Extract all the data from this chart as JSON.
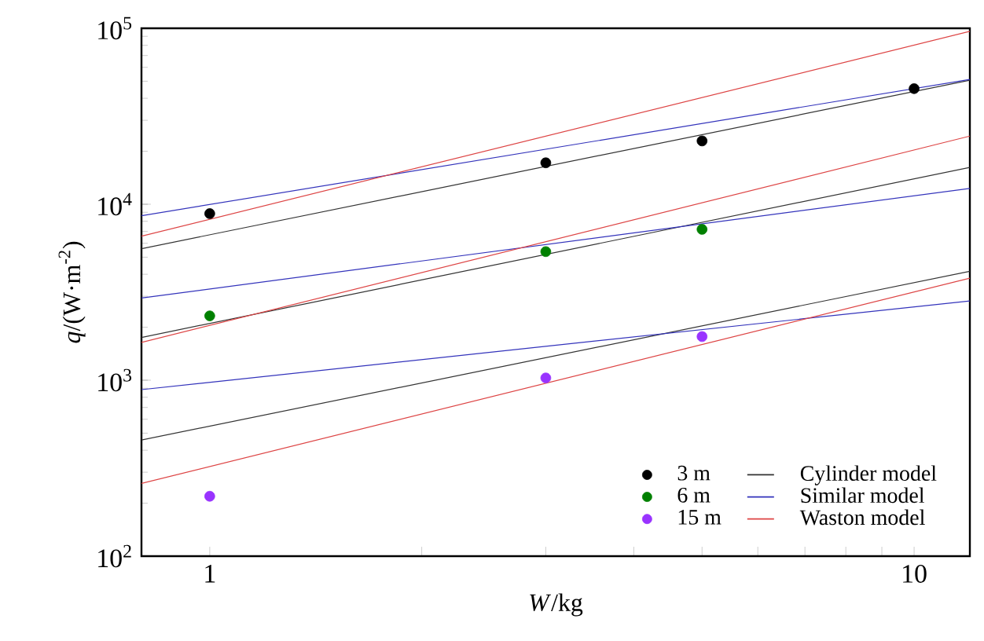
{
  "chart_data": {
    "type": "scatter",
    "xlabel": "*W*/kg",
    "ylabel": "*q*/(W·m$^{-2}$)",
    "log": "xy",
    "xlim": [
      0.8,
      12
    ],
    "ylim": [
      100,
      100000
    ],
    "xticks": [
      1,
      {
        "value": 2,
        "label": null
      },
      {
        "value": 3,
        "label": null
      },
      {
        "value": 4,
        "label": null
      },
      {
        "value": 5,
        "label": null
      },
      {
        "value": 6,
        "label": null
      },
      {
        "value": 7,
        "label": null
      },
      {
        "value": 8,
        "label": null
      },
      {
        "value": 9,
        "label": null
      },
      10
    ],
    "yticks": [
      {
        "value": 100,
        "label": "10$^{2}$"
      },
      {
        "value": 1000,
        "label": "10$^{3}$"
      },
      {
        "value": 10000,
        "label": "10$^{4}$"
      },
      {
        "value": 100000,
        "label": "10$^{5}$"
      }
    ],
    "grid": false,
    "legend": "bottom right",
    "series": [
      {
        "type": "line",
        "marker": "none",
        "name": "Cylinder model",
        "color": "#333333",
        "x": [
          0.8,
          12
        ],
        "values": [
          5590,
          50700
        ]
      },
      {
        "type": "line",
        "marker": "none",
        "name": "Similar model",
        "color": "#3333bb",
        "x": [
          0.8,
          12
        ],
        "values": [
          8600,
          51200
        ]
      },
      {
        "type": "line",
        "marker": "none",
        "name": "Waston model",
        "color": "#dd4444",
        "x": [
          0.8,
          12
        ],
        "values": [
          6590,
          96100
        ]
      },
      {
        "type": "line",
        "marker": "none",
        "color": "#333333",
        "x": [
          0.8,
          12
        ],
        "values": [
          1750,
          16200
        ]
      },
      {
        "type": "line",
        "marker": "none",
        "color": "#3333bb",
        "x": [
          0.8,
          12
        ],
        "values": [
          2930,
          12300
        ]
      },
      {
        "type": "line",
        "marker": "none",
        "color": "#dd4444",
        "x": [
          0.8,
          12
        ],
        "values": [
          1640,
          24400
        ]
      },
      {
        "type": "line",
        "marker": "none",
        "color": "#333333",
        "x": [
          0.8,
          12
        ],
        "values": [
          457,
          4160
        ]
      },
      {
        "type": "line",
        "marker": "none",
        "color": "#3333bb",
        "x": [
          0.8,
          12
        ],
        "values": [
          884,
          2820
        ]
      },
      {
        "type": "line",
        "marker": "none",
        "color": "#dd4444",
        "x": [
          0.8,
          12
        ],
        "values": [
          259,
          3800
        ]
      },
      {
        "name": "3 m",
        "color": "#000000",
        "x": [
          1,
          3,
          5,
          10
        ],
        "values": [
          8850,
          17200,
          22900,
          45400
        ]
      },
      {
        "name": "6 m",
        "color": "#008000",
        "x": [
          1,
          3,
          5
        ],
        "values": [
          2320,
          5380,
          7200
        ]
      },
      {
        "name": "15 m",
        "color": "#9933ff",
        "x": [
          1,
          3,
          5
        ],
        "values": [
          219,
          1030,
          1770
        ]
      }
    ]
  }
}
